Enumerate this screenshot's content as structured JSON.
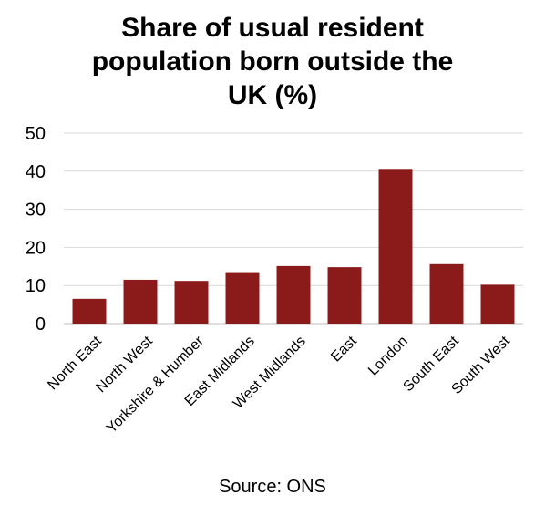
{
  "chart_data": {
    "type": "bar",
    "title_lines": [
      "Share of usual resident",
      "population born outside the",
      "UK (%)"
    ],
    "categories": [
      "North East",
      "North West",
      "Yorkshire & Humber",
      "East Midlands",
      "West Midlands",
      "East",
      "London",
      "South East",
      "South West"
    ],
    "values": [
      6.5,
      11.5,
      11.2,
      13.5,
      15.1,
      14.8,
      40.6,
      15.6,
      10.2
    ],
    "yticks": [
      0,
      10,
      20,
      30,
      40,
      50
    ],
    "ylim": [
      0,
      50
    ],
    "grid": true,
    "legend": "none",
    "bar_color": "#8b1a1a",
    "source": "Source: ONS"
  }
}
